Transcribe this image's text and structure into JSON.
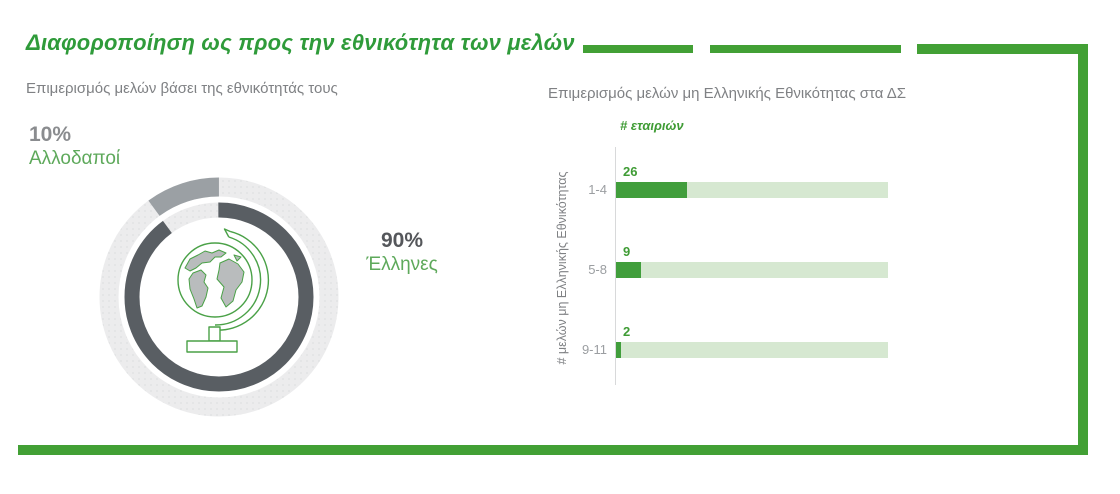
{
  "theme": {
    "accent_green": "#42A035",
    "title_green": "#2F9B3A",
    "label_green": "#5EA95B",
    "value_green": "#3F9C35",
    "bar_green": "#419E3C",
    "bar_track_green": "#D6E8D1",
    "ring_dark_gray": "#595E63",
    "ring_mid_gray": "#9BA0A4",
    "ring_light_gray": "#EBEBEC",
    "text_gray": "#7F8184",
    "category_gray": "#9B9EA1",
    "pct_dark_gray": "#55575B",
    "pct_mid_gray": "#8A8C8F",
    "axis_line_gray": "#D8D9DA"
  },
  "header": {
    "title": "Διαφοροποίηση ως προς την εθνικότητα των μελών"
  },
  "donut_section": {
    "subtitle": "Επιμερισμός μελών βάσει της εθνικότητάς τους"
  },
  "bar_section": {
    "subtitle": "Επιμερισμός μελών μη Ελληνικής Εθνικότητας στα ΔΣ"
  },
  "chart_data": [
    {
      "type": "pie",
      "subtype": "double-ring-donut",
      "title": "Επιμερισμός μελών βάσει της εθνικότητάς τους",
      "center_icon": "globe-icon",
      "legend_position": "callouts",
      "slices": [
        {
          "label": "Αλλοδαποί",
          "pct": 10,
          "pct_label": "10%",
          "color": "#9BA0A4"
        },
        {
          "label": "Έλληνες",
          "pct": 90,
          "pct_label": "90%",
          "color": "#595E63"
        }
      ]
    },
    {
      "type": "bar",
      "orientation": "horizontal",
      "title": "Επιμερισμός μελών μη Ελληνικής Εθνικότητας στα ΔΣ",
      "xlabel": "# εταιριών",
      "ylabel": "# μελών μη Ελληνικής Εθνικότητας",
      "categories": [
        "1-4",
        "5-8",
        "9-11"
      ],
      "values": [
        26,
        9,
        2
      ],
      "xlim": [
        0,
        100
      ],
      "grid": false,
      "legend": false,
      "bar_color": "#419E3C",
      "track_color": "#D6E8D1"
    }
  ]
}
